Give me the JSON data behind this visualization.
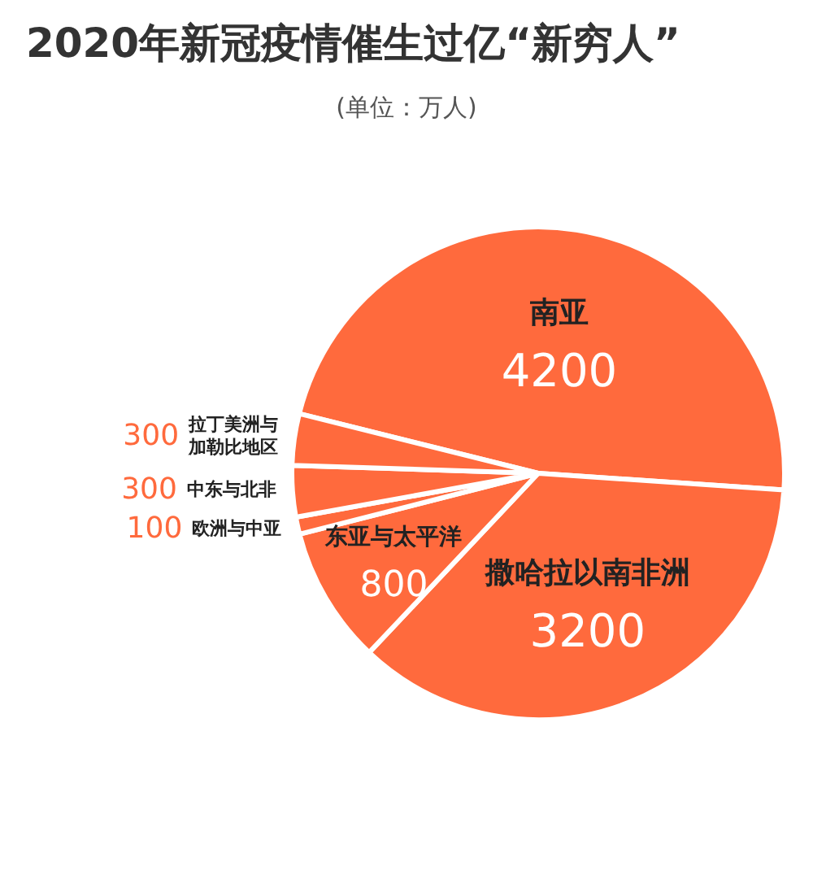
{
  "chart_data": {
    "type": "pie",
    "title": "2020年新冠疫情催生过亿“新穷人”",
    "subtitle": "(单位：万人)",
    "categories": [
      "南亚",
      "撒哈拉以南非洲",
      "东亚与太平洋",
      "欧洲与中亚",
      "中东与北非",
      "拉丁美洲与加勒比地区"
    ],
    "values": [
      4200,
      3200,
      800,
      100,
      300,
      300
    ],
    "colors": [
      "#ff6a3d",
      "#ff6a3d",
      "#ff6a3d",
      "#ff6a3d",
      "#ff6a3d",
      "#ff6a3d"
    ],
    "data_labels": true,
    "legend": false
  }
}
